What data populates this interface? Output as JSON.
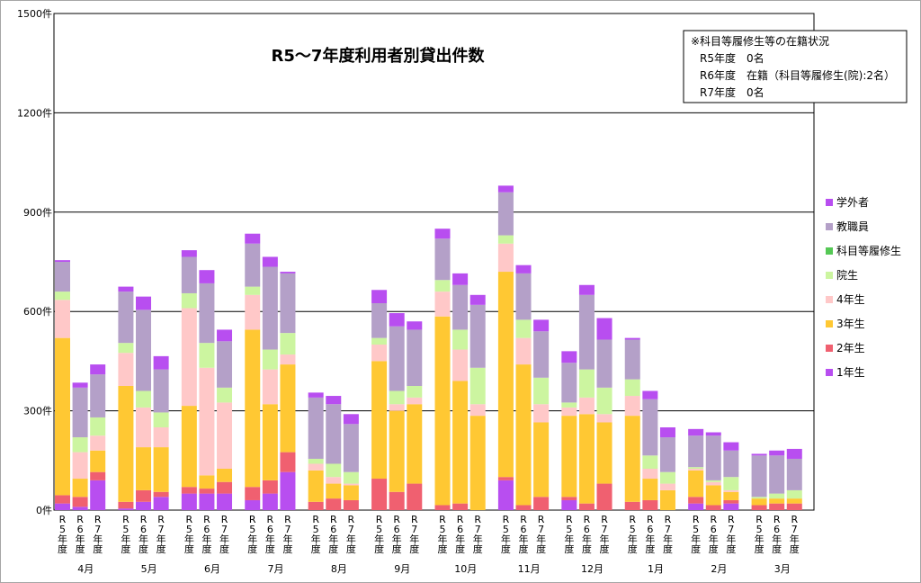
{
  "chart_data": {
    "type": "bar",
    "stacked": true,
    "title": "R5～7年度利用者別貸出件数",
    "note": {
      "heading": "※科目等履修生等の在籍状況",
      "lines": [
        "R5年度　0名",
        "R6年度　在籍（科目等履修生(院):2名）",
        "R7年度　0名"
      ]
    },
    "y_ticks": [
      "0件",
      "300件",
      "600件",
      "900件",
      "1200件",
      "1500件"
    ],
    "ylim": [
      0,
      1500
    ],
    "grid": true,
    "legend_position": "right",
    "months": [
      "4月",
      "5月",
      "6月",
      "7月",
      "8月",
      "9月",
      "10月",
      "11月",
      "12月",
      "1月",
      "2月",
      "3月"
    ],
    "years": [
      "R5年度",
      "R6年度",
      "R7年度"
    ],
    "series": [
      {
        "name": "1年生",
        "color": "#b84ef0",
        "values": [
          [
            20,
            10,
            90
          ],
          [
            5,
            25,
            40
          ],
          [
            50,
            50,
            50
          ],
          [
            30,
            50,
            115
          ],
          [
            0,
            0,
            0
          ],
          [
            0,
            0,
            0
          ],
          [
            0,
            0,
            0
          ],
          [
            90,
            0,
            0
          ],
          [
            30,
            0,
            0
          ],
          [
            0,
            0,
            0
          ],
          [
            20,
            0,
            20
          ],
          [
            0,
            0,
            0
          ]
        ]
      },
      {
        "name": "2年生",
        "color": "#f06070",
        "values": [
          [
            25,
            30,
            25
          ],
          [
            20,
            35,
            15
          ],
          [
            20,
            15,
            35
          ],
          [
            40,
            40,
            60
          ],
          [
            25,
            35,
            30
          ],
          [
            95,
            55,
            80
          ],
          [
            15,
            20,
            0
          ],
          [
            10,
            15,
            40
          ],
          [
            10,
            20,
            80
          ],
          [
            25,
            30,
            0
          ],
          [
            20,
            15,
            10
          ],
          [
            15,
            20,
            20
          ]
        ]
      },
      {
        "name": "3年生",
        "color": "#ffc833",
        "values": [
          [
            475,
            55,
            65
          ],
          [
            350,
            130,
            135
          ],
          [
            245,
            40,
            40
          ],
          [
            475,
            230,
            265
          ],
          [
            95,
            45,
            45
          ],
          [
            355,
            245,
            240
          ],
          [
            570,
            370,
            285
          ],
          [
            620,
            425,
            225
          ],
          [
            245,
            270,
            185
          ],
          [
            260,
            65,
            60
          ],
          [
            80,
            60,
            25
          ],
          [
            20,
            15,
            15
          ]
        ]
      },
      {
        "name": "4年生",
        "color": "#ffc8c8",
        "values": [
          [
            115,
            80,
            45
          ],
          [
            100,
            120,
            60
          ],
          [
            295,
            325,
            200
          ],
          [
            105,
            105,
            30
          ],
          [
            20,
            20,
            5
          ],
          [
            50,
            20,
            20
          ],
          [
            75,
            95,
            35
          ],
          [
            85,
            80,
            55
          ],
          [
            25,
            50,
            25
          ],
          [
            60,
            30,
            20
          ],
          [
            5,
            10,
            5
          ],
          [
            0,
            0,
            0
          ]
        ]
      },
      {
        "name": "院生",
        "color": "#ccf5a0",
        "values": [
          [
            25,
            45,
            55
          ],
          [
            30,
            50,
            45
          ],
          [
            45,
            75,
            45
          ],
          [
            25,
            60,
            65
          ],
          [
            15,
            40,
            35
          ],
          [
            20,
            40,
            35
          ],
          [
            35,
            60,
            110
          ],
          [
            25,
            55,
            80
          ],
          [
            15,
            85,
            80
          ],
          [
            50,
            40,
            35
          ],
          [
            5,
            5,
            40
          ],
          [
            5,
            15,
            25
          ]
        ]
      },
      {
        "name": "科目等履修生",
        "color": "#55c855",
        "values": [
          [
            0,
            0,
            0
          ],
          [
            0,
            0,
            0
          ],
          [
            0,
            0,
            0
          ],
          [
            0,
            0,
            0
          ],
          [
            0,
            0,
            0
          ],
          [
            0,
            0,
            0
          ],
          [
            0,
            0,
            0
          ],
          [
            0,
            0,
            0
          ],
          [
            0,
            0,
            0
          ],
          [
            0,
            0,
            0
          ],
          [
            0,
            0,
            0
          ],
          [
            0,
            0,
            0
          ]
        ]
      },
      {
        "name": "教職員",
        "color": "#b4a0c8",
        "values": [
          [
            90,
            150,
            130
          ],
          [
            155,
            245,
            130
          ],
          [
            110,
            180,
            140
          ],
          [
            130,
            250,
            180
          ],
          [
            185,
            180,
            145
          ],
          [
            105,
            195,
            170
          ],
          [
            125,
            135,
            190
          ],
          [
            130,
            140,
            140
          ],
          [
            120,
            225,
            145
          ],
          [
            120,
            170,
            105
          ],
          [
            95,
            135,
            80
          ],
          [
            125,
            115,
            95
          ]
        ]
      },
      {
        "name": "学外者",
        "color": "#b84ef0",
        "values": [
          [
            5,
            15,
            30
          ],
          [
            15,
            40,
            40
          ],
          [
            20,
            40,
            35
          ],
          [
            30,
            30,
            5
          ],
          [
            15,
            25,
            30
          ],
          [
            40,
            40,
            25
          ],
          [
            30,
            35,
            30
          ],
          [
            20,
            25,
            35
          ],
          [
            35,
            30,
            65
          ],
          [
            5,
            25,
            30
          ],
          [
            20,
            10,
            25
          ],
          [
            5,
            15,
            30
          ]
        ]
      }
    ]
  }
}
